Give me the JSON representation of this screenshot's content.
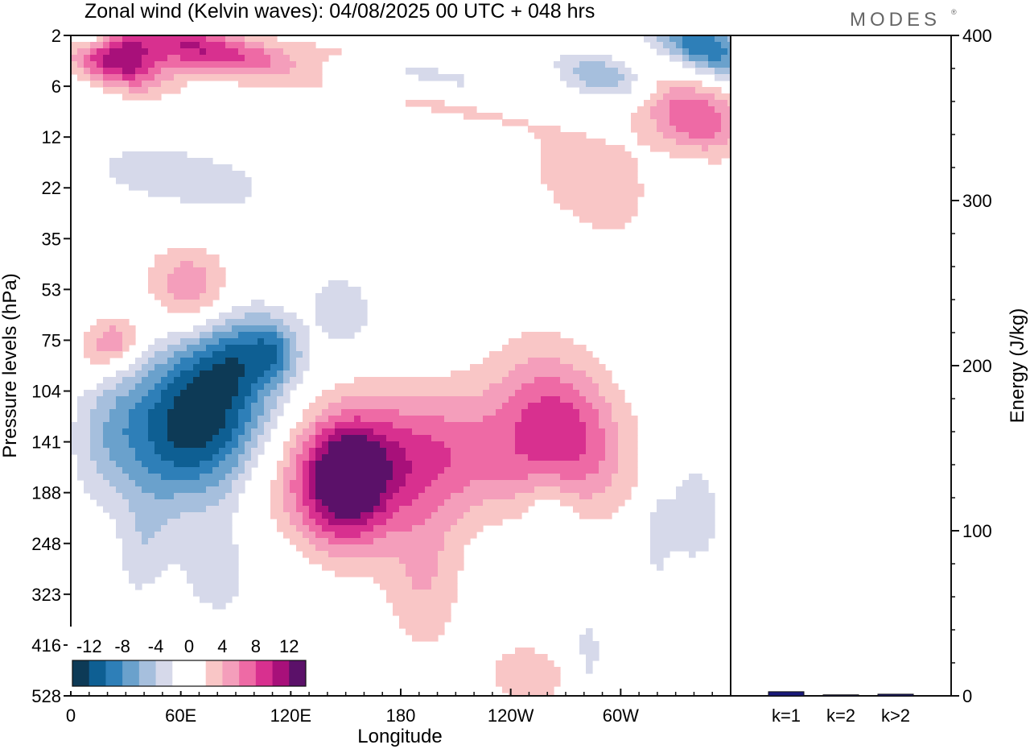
{
  "title": "Zonal wind (Kelvin waves):  04/08/2025  00 UTC  + 048 hrs",
  "brand": "MODES",
  "brand_mark": "®",
  "chart_data": [
    {
      "type": "heatmap",
      "title": "Zonal wind (Kelvin waves):  04/08/2025  00 UTC  + 048 hrs",
      "xlabel": "Longitude",
      "ylabel": "Pressure levels (hPa)",
      "x_ticks": [
        "0",
        "60E",
        "120E",
        "180",
        "120W",
        "60W"
      ],
      "x_tick_values": [
        0,
        60,
        120,
        180,
        240,
        300
      ],
      "xlim": [
        0,
        360
      ],
      "y_ticks": [
        "2",
        "6",
        "12",
        "22",
        "35",
        "53",
        "75",
        "104",
        "141",
        "188",
        "248",
        "323",
        "416",
        "528"
      ],
      "y_direction": "pressure increasing downward",
      "colorbar": {
        "labels": [
          "-12",
          "-8",
          "-4",
          "0",
          "4",
          "8",
          "12"
        ],
        "bins": [
          {
            "color": "#0d3a56"
          },
          {
            "color": "#0e5f93"
          },
          {
            "color": "#2e7fb8"
          },
          {
            "color": "#6aa1cc"
          },
          {
            "color": "#a6bfdd"
          },
          {
            "color": "#d6d9ea"
          },
          {
            "color": "#ffffff"
          },
          {
            "color": "#ffffff"
          },
          {
            "color": "#f9c6c6"
          },
          {
            "color": "#f49ebb"
          },
          {
            "color": "#ee6aa5"
          },
          {
            "color": "#d8308f"
          },
          {
            "color": "#a8107a"
          },
          {
            "color": "#5b1169"
          }
        ]
      },
      "blobs": [
        {
          "lon": 68,
          "lev": 7.7,
          "rlon": 42,
          "rlev": 1.5,
          "rot": -35,
          "v": -14
        },
        {
          "lon": 90,
          "lev": 6.3,
          "rlon": 26,
          "rlev": 0.9,
          "rot": -30,
          "v": -7
        },
        {
          "lon": 112,
          "lev": 6.2,
          "rlon": 14,
          "rlev": 0.6,
          "rot": -15,
          "v": -5
        },
        {
          "lon": 148,
          "lev": 5.4,
          "rlon": 16,
          "rlev": 0.7,
          "rot": -20,
          "v": -4
        },
        {
          "lon": 40,
          "lev": 10.0,
          "rlon": 14,
          "rlev": 1.2,
          "rot": 10,
          "v": -3
        },
        {
          "lon": 165,
          "lev": 8.4,
          "rlon": 70,
          "rlev": 1.3,
          "rot": -10,
          "v": 9
        },
        {
          "lon": 150,
          "lev": 8.9,
          "rlon": 22,
          "rlev": 1.2,
          "rot": 0,
          "v": 10
        },
        {
          "lon": 192,
          "lev": 10.6,
          "rlon": 22,
          "rlev": 1.6,
          "rot": 0,
          "v": 4
        },
        {
          "lon": 268,
          "lev": 7.6,
          "rlon": 30,
          "rlev": 1.6,
          "rot": -25,
          "v": 7
        },
        {
          "lon": 250,
          "lev": 8.4,
          "rlon": 50,
          "rlev": 1.2,
          "rot": 0,
          "v": 3
        },
        {
          "lon": 65,
          "lev": 5.0,
          "rlon": 22,
          "rlev": 0.9,
          "rot": -20,
          "v": 6
        },
        {
          "lon": 28,
          "lev": 6.0,
          "rlon": 12,
          "rlev": 0.5,
          "rot": -10,
          "v": 5
        },
        {
          "lon": 250,
          "lev": 12.6,
          "rlon": 30,
          "rlev": 0.8,
          "rot": 10,
          "v": 3
        },
        {
          "lon": 282,
          "lev": 12.3,
          "rlon": 10,
          "rlev": 1.2,
          "rot": 0,
          "v": -3
        },
        {
          "lon": 340,
          "lev": 9.4,
          "rlon": 14,
          "rlev": 1.0,
          "rot": 0,
          "v": -4
        },
        {
          "lon": 262,
          "lev": 9.5,
          "rlon": 14,
          "rlev": 0.9,
          "rot": 0,
          "v": -3
        },
        {
          "lon": 320,
          "lev": 9.8,
          "rlon": 8,
          "rlev": 1.0,
          "rot": 0,
          "v": -3
        },
        {
          "lon": 80,
          "lev": 10.5,
          "rlon": 25,
          "rlev": 1.3,
          "rot": 0,
          "v": -2.8
        },
        {
          "lon": 300,
          "lev": 3.2,
          "rlon": 60,
          "rlev": 1.0,
          "rot": 30,
          "v": 4
        },
        {
          "lon": 340,
          "lev": 1.6,
          "rlon": 30,
          "rlev": 0.7,
          "rot": 20,
          "v": 8
        },
        {
          "lon": 325,
          "lev": 3.6,
          "rlon": 25,
          "rlev": 1.0,
          "rot": 20,
          "v": -3
        },
        {
          "lon": 60,
          "lev": 2.8,
          "rlon": 70,
          "rlev": 0.8,
          "rot": 10,
          "v": -2.8
        },
        {
          "lon": 25,
          "lev": 0.5,
          "rlon": 28,
          "rlev": 0.5,
          "rot": 20,
          "v": 11
        },
        {
          "lon": 70,
          "lev": 0.25,
          "rlon": 50,
          "rlev": 0.45,
          "rot": 12,
          "v": 10
        },
        {
          "lon": 10,
          "lev": 0.0,
          "rlon": 14,
          "rlev": 0.3,
          "rot": 0,
          "v": -7
        },
        {
          "lon": 345,
          "lev": 0.2,
          "rlon": 30,
          "rlev": 0.5,
          "rot": 25,
          "v": -10
        },
        {
          "lon": 290,
          "lev": 0.8,
          "rlon": 25,
          "rlev": 0.4,
          "rot": 15,
          "v": -6
        },
        {
          "lon": 200,
          "lev": 0.9,
          "rlon": 60,
          "rlev": 0.4,
          "rot": 12,
          "v": -3
        },
        {
          "lon": 200,
          "lev": 1.3,
          "rlon": 60,
          "rlev": 0.35,
          "rot": 10,
          "v": 3
        },
        {
          "lon": 150,
          "lev": 0.3,
          "rlon": 40,
          "rlev": 0.3,
          "rot": 0,
          "v": 2.8
        },
        {
          "lon": 20,
          "lev": 8.0,
          "rlon": 18,
          "rlev": 1.3,
          "rot": 0,
          "v": -2.8
        },
        {
          "lon": 15,
          "lev": 6.2,
          "rlon": 12,
          "rlev": 0.6,
          "rot": 0,
          "v": 4
        }
      ]
    },
    {
      "type": "bar",
      "categories": [
        "k=1",
        "k=2",
        "k>2"
      ],
      "values": [
        2.5,
        0.6,
        1.0
      ],
      "ylabel": "Energy (J/kg)",
      "ylim": [
        0,
        400
      ],
      "yticks": [
        "0",
        "100",
        "200",
        "300",
        "400"
      ],
      "y_axis_side": "right",
      "bar_color": "#1a1a7a"
    }
  ]
}
